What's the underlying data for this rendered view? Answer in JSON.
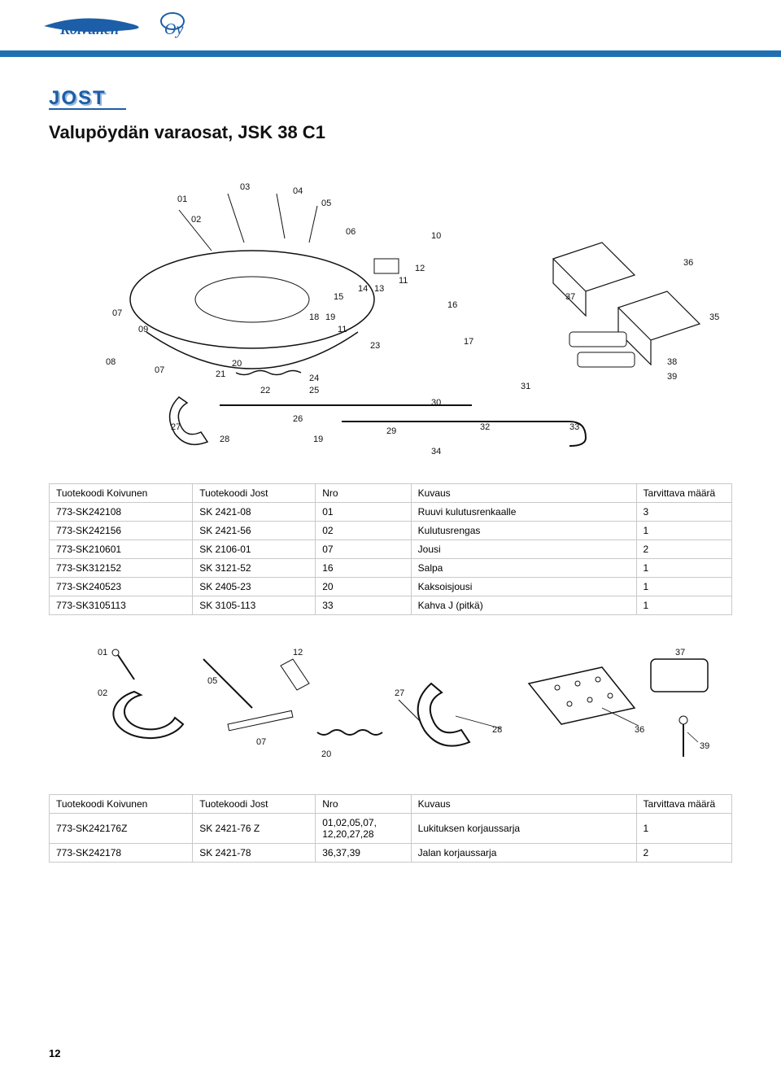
{
  "header": {
    "company_logo_text": "Koivunen Oy",
    "stripe_color": "#1f6fb2"
  },
  "brand_logo_text": "JOST",
  "page_title": "Valupöydän varaosat, JSK 38 C1",
  "diagram1": {
    "callouts": [
      "01",
      "02",
      "03",
      "04",
      "05",
      "06",
      "07",
      "08",
      "09",
      "10",
      "11",
      "12",
      "13",
      "14",
      "15",
      "16",
      "17",
      "18",
      "19",
      "20",
      "21",
      "22",
      "23",
      "24",
      "25",
      "26",
      "27",
      "28",
      "29",
      "30",
      "31",
      "32",
      "33",
      "34",
      "35",
      "36",
      "37",
      "38",
      "39"
    ]
  },
  "table1": {
    "columns": [
      "Tuotekoodi Koivunen",
      "Tuotekoodi Jost",
      "Nro",
      "Kuvaus",
      "Tarvittava määrä"
    ],
    "rows": [
      [
        "773-SK242108",
        "SK 2421-08",
        "01",
        "Ruuvi kulutusrenkaalle",
        "3"
      ],
      [
        "773-SK242156",
        "SK 2421-56",
        "02",
        "Kulutusrengas",
        "1"
      ],
      [
        "773-SK210601",
        "SK 2106-01",
        "07",
        "Jousi",
        "2"
      ],
      [
        "773-SK312152",
        "SK 3121-52",
        "16",
        "Salpa",
        "1"
      ],
      [
        "773-SK240523",
        "SK 2405-23",
        "20",
        "Kaksoisjousi",
        "1"
      ],
      [
        "773-SK3105113",
        "SK 3105-113",
        "33",
        "Kahva J (pitkä)",
        "1"
      ]
    ]
  },
  "diagram2": {
    "callouts": [
      "01",
      "02",
      "05",
      "07",
      "12",
      "20",
      "27",
      "28",
      "36",
      "37",
      "39"
    ]
  },
  "table2": {
    "columns": [
      "Tuotekoodi Koivunen",
      "Tuotekoodi Jost",
      "Nro",
      "Kuvaus",
      "Tarvittava määrä"
    ],
    "rows": [
      [
        "773-SK242176Z",
        "SK 2421-76 Z",
        "01,02,05,07,\n12,20,27,28",
        "Lukituksen korjaussarja",
        "1"
      ],
      [
        "773-SK242178",
        "SK 2421-78",
        "36,37,39",
        "Jalan korjaussarja",
        "2"
      ]
    ]
  },
  "page_number": "12",
  "colors": {
    "border": "#c9c9c9",
    "text": "#111111",
    "brand_blue": "#1c5ea8",
    "brand_shadow": "#9bb8da"
  }
}
